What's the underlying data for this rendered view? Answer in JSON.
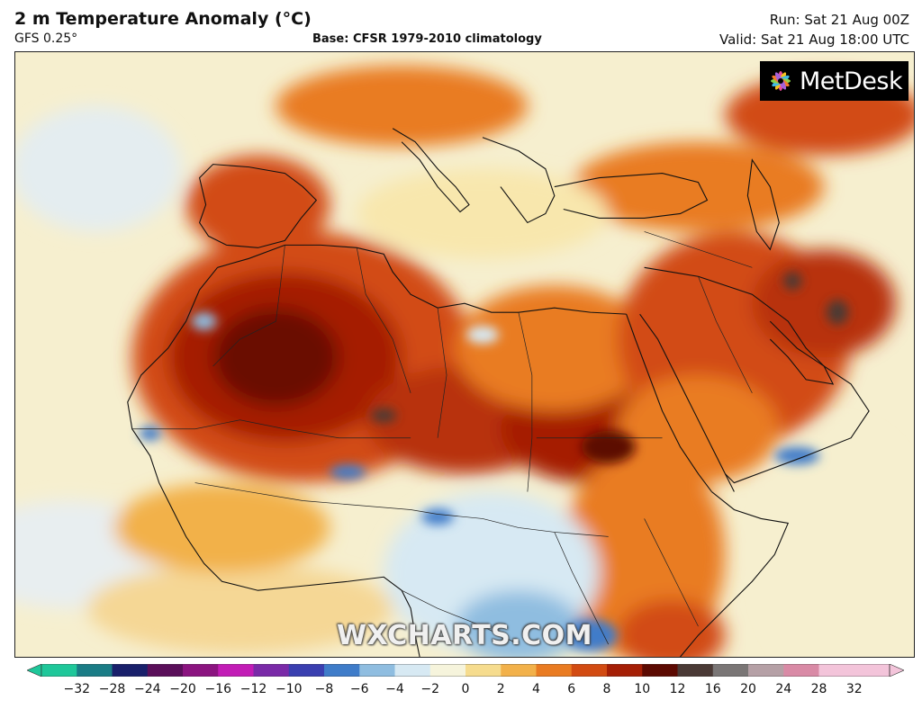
{
  "header": {
    "title": "2 m Temperature Anomaly (°C)",
    "model": "GFS 0.25°",
    "base": "Base: CFSR 1979-2010 climatology",
    "run": "Run: Sat 21 Aug 00Z",
    "valid": "Valid: Sat 21 Aug 18:00 UTC"
  },
  "logo": {
    "text": "MetDesk"
  },
  "watermark": "WXCHARTS.COM",
  "legend": {
    "ticks": [
      "−32",
      "−28",
      "−24",
      "−20",
      "−16",
      "−12",
      "−10",
      "−8",
      "−6",
      "−4",
      "−2",
      "0",
      "2",
      "4",
      "6",
      "8",
      "10",
      "12",
      "16",
      "20",
      "24",
      "28",
      "32"
    ],
    "colors": [
      "#1fc79a",
      "#1a7c86",
      "#19206b",
      "#5a0f5a",
      "#8b1480",
      "#c21cb6",
      "#7a2aa8",
      "#3a3fb0",
      "#3f7cc9",
      "#8fbde0",
      "#d7e9f3",
      "#f6f4dc",
      "#f6dc8e",
      "#f2b14a",
      "#e97b22",
      "#d24b12",
      "#a51f06",
      "#5c0a02",
      "#4a3a36",
      "#7a7676",
      "#b5a0a6",
      "#d98aa6",
      "#f3c4da"
    ]
  },
  "colors": {
    "base_fill": "#fbe6a8",
    "ocean_neutral": "#f6efcf",
    "warm_1": "#f2b14a",
    "warm_2": "#e97b22",
    "warm_3": "#d24b12",
    "warm_4": "#a51f06",
    "warm_5": "#5c0a02",
    "cool_1": "#d7e9f3",
    "cool_2": "#8fbde0",
    "cool_3": "#3f7cc9"
  }
}
